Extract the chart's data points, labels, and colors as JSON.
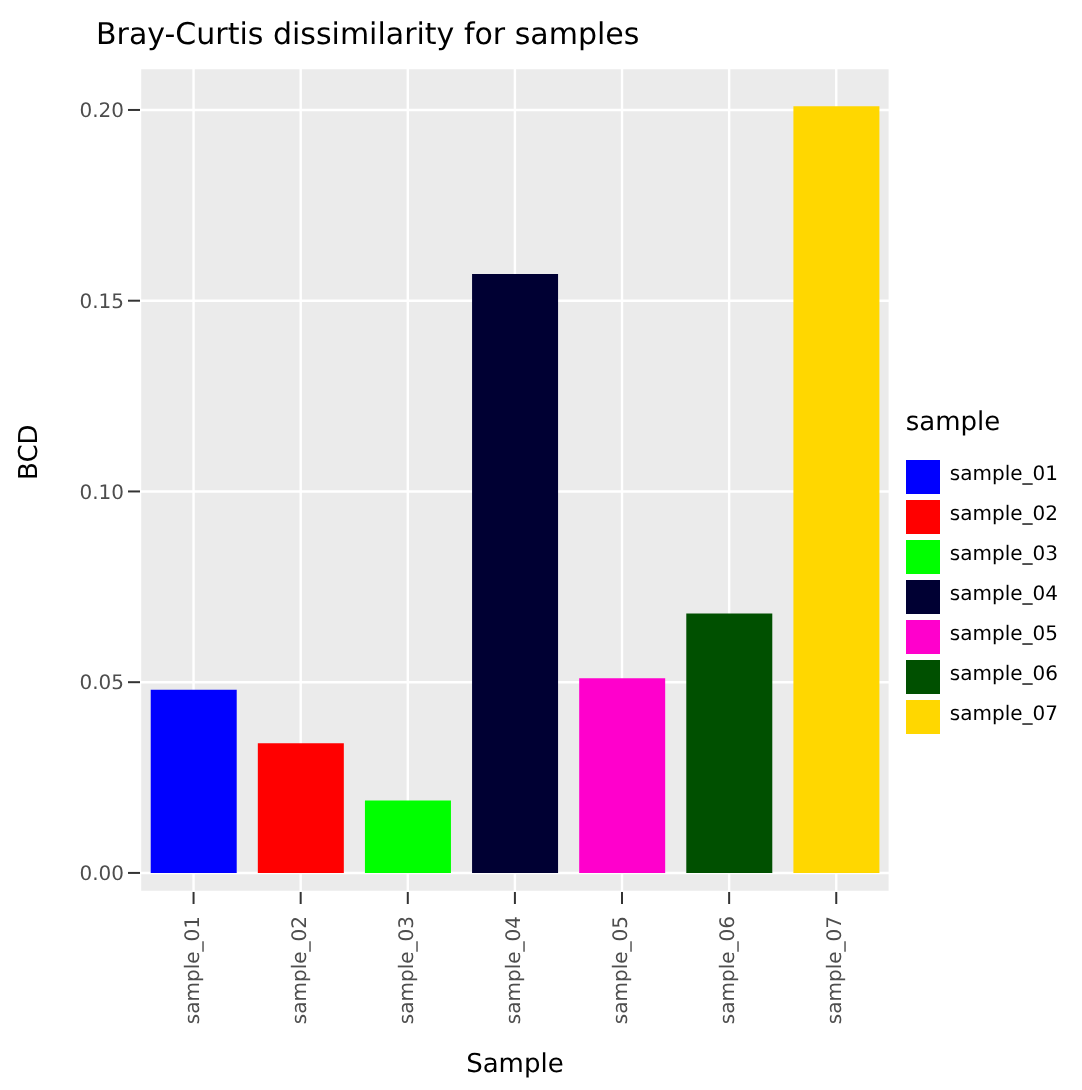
{
  "chart_data": {
    "type": "bar",
    "title": "Bray-Curtis dissimilarity for samples",
    "xlabel": "Sample",
    "ylabel": "BCD",
    "legend_title": "sample",
    "categories": [
      "sample_01",
      "sample_02",
      "sample_03",
      "sample_04",
      "sample_05",
      "sample_06",
      "sample_07"
    ],
    "series": [
      {
        "name": "sample_01",
        "color": "#0000ff",
        "values": [
          0.048,
          null,
          null,
          null,
          null,
          null,
          null
        ]
      },
      {
        "name": "sample_02",
        "color": "#ff0000",
        "values": [
          null,
          0.034,
          null,
          null,
          null,
          null,
          null
        ]
      },
      {
        "name": "sample_03",
        "color": "#00ff00",
        "values": [
          null,
          null,
          0.019,
          null,
          null,
          null,
          null
        ]
      },
      {
        "name": "sample_04",
        "color": "#000033",
        "values": [
          null,
          null,
          null,
          0.157,
          null,
          null,
          null
        ]
      },
      {
        "name": "sample_05",
        "color": "#ff00cc",
        "values": [
          null,
          null,
          null,
          null,
          0.051,
          null,
          null
        ]
      },
      {
        "name": "sample_06",
        "color": "#005000",
        "values": [
          null,
          null,
          null,
          null,
          null,
          0.068,
          null
        ]
      },
      {
        "name": "sample_07",
        "color": "#ffd700",
        "values": [
          null,
          null,
          null,
          null,
          null,
          null,
          0.201
        ]
      }
    ],
    "stacked": true,
    "ylim": [
      -0.005,
      0.211
    ],
    "yticks": [
      {
        "value": 0,
        "label": "0.00"
      },
      {
        "value": 0.05,
        "label": "0.05"
      },
      {
        "value": 0.1,
        "label": "0.10"
      },
      {
        "value": 0.15,
        "label": "0.15"
      },
      {
        "value": 0.2,
        "label": "0.20"
      }
    ],
    "grid": true,
    "legend": "right"
  }
}
